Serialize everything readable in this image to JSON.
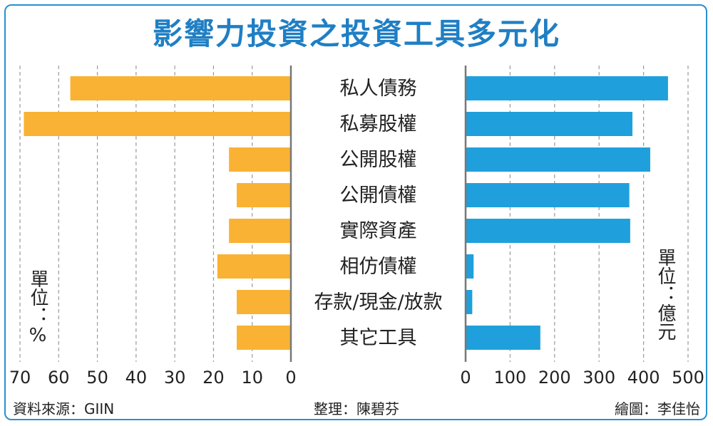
{
  "title": "影響力投資之投資工具多元化",
  "left_unit": "單位：%",
  "right_unit": "單位：億元",
  "footer": {
    "source": "資料來源：GIIN",
    "editor": "整理：陳碧芬",
    "artist": "繪圖：李佳怡"
  },
  "colors": {
    "left_bar": "#f9b233",
    "right_bar": "#1fa0dc",
    "title": "#1f7fc4",
    "border": "#2a8fd0"
  },
  "chart_data": [
    {
      "type": "bar",
      "orientation": "horizontal",
      "direction": "leftward",
      "categories": [
        "私人債務",
        "私募股權",
        "公開股權",
        "公開債權",
        "實際資產",
        "相仿債權",
        "存款/現金/放款",
        "其它工具"
      ],
      "values": [
        57,
        69,
        16,
        14,
        16,
        19,
        14,
        14
      ],
      "xlim": [
        0,
        70
      ],
      "ticks": [
        70,
        60,
        50,
        40,
        30,
        20,
        10,
        0
      ],
      "unit": "單位：%",
      "grid": true
    },
    {
      "type": "bar",
      "orientation": "horizontal",
      "direction": "rightward",
      "categories": [
        "私人債務",
        "私募股權",
        "公開股權",
        "公開債權",
        "實際資產",
        "相仿債權",
        "存款/現金/放款",
        "其它工具"
      ],
      "values": [
        455,
        375,
        415,
        368,
        370,
        18,
        15,
        168
      ],
      "xlim": [
        0,
        500
      ],
      "ticks": [
        0,
        100,
        200,
        300,
        400,
        500
      ],
      "unit": "單位：億元",
      "grid": true
    }
  ]
}
